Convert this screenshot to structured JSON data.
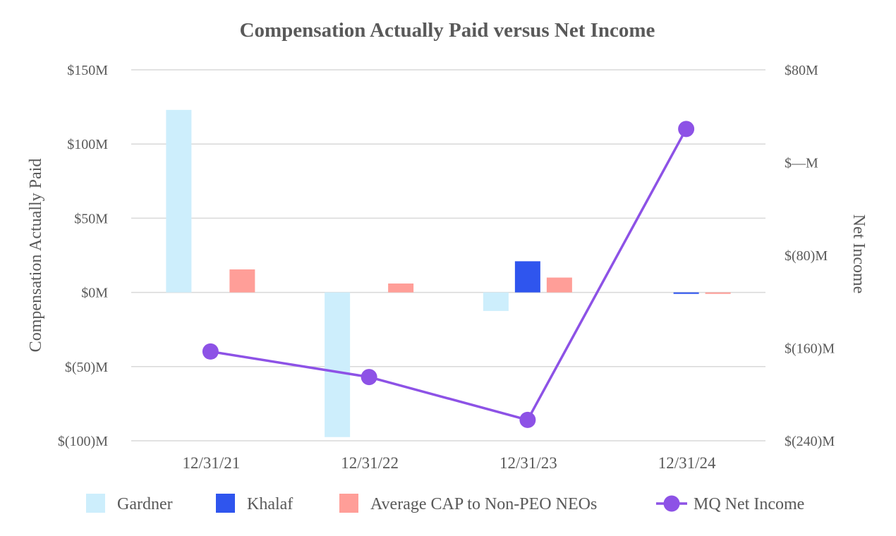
{
  "chart_data": {
    "type": "bar",
    "title": "Compensation Actually Paid versus Net Income",
    "categories": [
      "12/31/21",
      "12/31/22",
      "12/31/23",
      "12/31/24"
    ],
    "ylabel": "Compensation Actually Paid",
    "ylabel_right": "Net Income",
    "ylim": [
      -100,
      150
    ],
    "ylim_right": [
      -240,
      80
    ],
    "yticks": [
      150,
      100,
      50,
      0,
      -50,
      -100
    ],
    "ytick_labels": [
      "$150M",
      "$100M",
      "$50M",
      "$0M",
      "$(50)M",
      "$(100)M"
    ],
    "yticks_right": [
      80,
      0,
      -80,
      -160,
      -240
    ],
    "ytick_labels_right": [
      "$80M",
      "$—M",
      "$(80)M",
      "$(160)M",
      "$(240)M"
    ],
    "grid": true,
    "legend_position": "bottom",
    "series": [
      {
        "name": "Gardner",
        "kind": "bar",
        "axis": "left",
        "color": "#cdeefc",
        "values": [
          123,
          -97.5,
          -12.5,
          null
        ]
      },
      {
        "name": "Khalaf",
        "kind": "bar",
        "axis": "left",
        "color": "#2f55ee",
        "values": [
          null,
          null,
          21,
          -1
        ]
      },
      {
        "name": "Average CAP to Non-PEO NEOs",
        "kind": "bar",
        "axis": "left",
        "color": "#ff9e98",
        "values": [
          15.5,
          6,
          10,
          -1
        ]
      },
      {
        "name": "MQ Net Income",
        "kind": "line",
        "axis": "right",
        "color": "#8d52e6",
        "values": [
          -163,
          -185,
          -222,
          29
        ]
      }
    ]
  }
}
